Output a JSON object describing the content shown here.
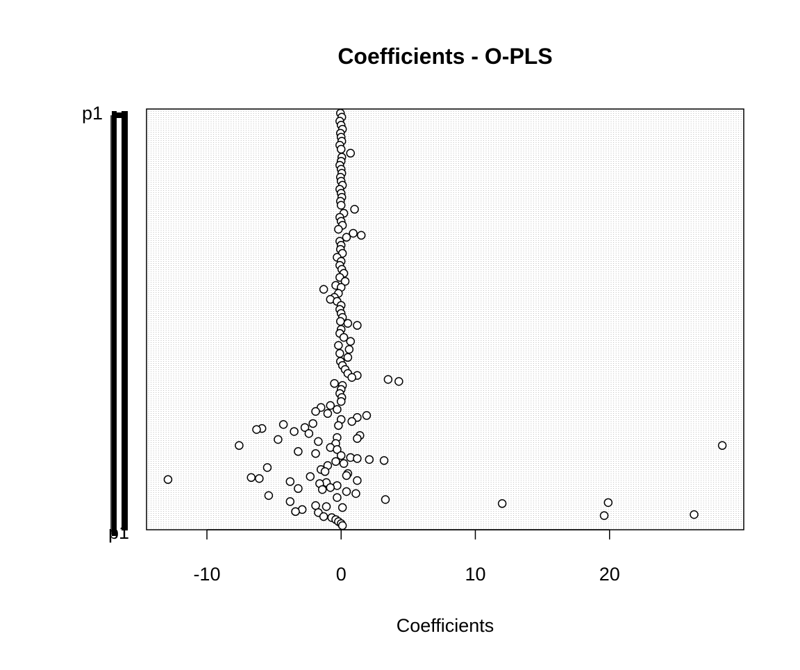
{
  "chart_data": {
    "type": "scatter",
    "title": "Coefficients -  O-PLS",
    "xlabel": "Coefficients",
    "ylabel": "",
    "xlim": [
      -14.5,
      30
    ],
    "xticks": [
      -10,
      0,
      10,
      20
    ],
    "xtick_labels": [
      "-10",
      "0",
      "10",
      "20"
    ],
    "y_top_label": "p1",
    "y_bottom_label": "p1",
    "grid": "dense vertical dotted lines",
    "legend": "none",
    "colors": {
      "point_fill": "#ffffff",
      "point_stroke": "#000000",
      "grid": "#bdbdbd",
      "text": "#000000"
    },
    "points": [
      {
        "x": -0.05,
        "y": 0
      },
      {
        "x": 0.05,
        "y": 2
      },
      {
        "x": -0.1,
        "y": 4
      },
      {
        "x": 0.0,
        "y": 6
      },
      {
        "x": 0.1,
        "y": 8
      },
      {
        "x": -0.05,
        "y": 10
      },
      {
        "x": 0.0,
        "y": 12
      },
      {
        "x": 0.05,
        "y": 14
      },
      {
        "x": -0.1,
        "y": 16
      },
      {
        "x": 0.0,
        "y": 18
      },
      {
        "x": 0.7,
        "y": 20
      },
      {
        "x": 0.05,
        "y": 22
      },
      {
        "x": 0.0,
        "y": 24
      },
      {
        "x": -0.1,
        "y": 26
      },
      {
        "x": 0.0,
        "y": 28
      },
      {
        "x": 0.05,
        "y": 30
      },
      {
        "x": -0.05,
        "y": 32
      },
      {
        "x": 0.0,
        "y": 34
      },
      {
        "x": 0.1,
        "y": 36
      },
      {
        "x": -0.1,
        "y": 38
      },
      {
        "x": 0.0,
        "y": 40
      },
      {
        "x": 0.05,
        "y": 42
      },
      {
        "x": -0.05,
        "y": 44
      },
      {
        "x": 0.0,
        "y": 46
      },
      {
        "x": 1.0,
        "y": 48
      },
      {
        "x": 0.2,
        "y": 50
      },
      {
        "x": -0.1,
        "y": 52
      },
      {
        "x": 0.0,
        "y": 54
      },
      {
        "x": 0.1,
        "y": 56
      },
      {
        "x": -0.2,
        "y": 58
      },
      {
        "x": 0.9,
        "y": 60
      },
      {
        "x": 1.5,
        "y": 61
      },
      {
        "x": 0.4,
        "y": 62
      },
      {
        "x": -0.1,
        "y": 64
      },
      {
        "x": 0.0,
        "y": 66
      },
      {
        "x": -0.05,
        "y": 68
      },
      {
        "x": 0.1,
        "y": 70
      },
      {
        "x": -0.3,
        "y": 72
      },
      {
        "x": 0.0,
        "y": 74
      },
      {
        "x": -0.1,
        "y": 76
      },
      {
        "x": 0.05,
        "y": 78
      },
      {
        "x": 0.2,
        "y": 80
      },
      {
        "x": -0.1,
        "y": 82
      },
      {
        "x": 0.3,
        "y": 84
      },
      {
        "x": -0.4,
        "y": 86
      },
      {
        "x": 0.0,
        "y": 87
      },
      {
        "x": -1.3,
        "y": 88
      },
      {
        "x": -0.2,
        "y": 90
      },
      {
        "x": -0.5,
        "y": 92
      },
      {
        "x": -0.8,
        "y": 93
      },
      {
        "x": -0.3,
        "y": 94
      },
      {
        "x": 0.0,
        "y": 96
      },
      {
        "x": -0.1,
        "y": 98
      },
      {
        "x": 0.0,
        "y": 100
      },
      {
        "x": 0.1,
        "y": 102
      },
      {
        "x": -0.05,
        "y": 104
      },
      {
        "x": 0.5,
        "y": 105
      },
      {
        "x": 1.2,
        "y": 106
      },
      {
        "x": 0.0,
        "y": 108
      },
      {
        "x": -0.1,
        "y": 110
      },
      {
        "x": 0.2,
        "y": 112
      },
      {
        "x": 0.7,
        "y": 114
      },
      {
        "x": -0.2,
        "y": 116
      },
      {
        "x": 0.6,
        "y": 118
      },
      {
        "x": -0.1,
        "y": 120
      },
      {
        "x": 0.5,
        "y": 122
      },
      {
        "x": -0.05,
        "y": 124
      },
      {
        "x": 0.1,
        "y": 126
      },
      {
        "x": 0.3,
        "y": 128
      },
      {
        "x": 0.5,
        "y": 130
      },
      {
        "x": 1.2,
        "y": 131
      },
      {
        "x": 0.8,
        "y": 132
      },
      {
        "x": 3.5,
        "y": 133
      },
      {
        "x": 4.3,
        "y": 134
      },
      {
        "x": -0.5,
        "y": 135
      },
      {
        "x": 0.1,
        "y": 136
      },
      {
        "x": 0.0,
        "y": 138
      },
      {
        "x": -0.1,
        "y": 140
      },
      {
        "x": 0.05,
        "y": 142
      },
      {
        "x": 0.0,
        "y": 144
      },
      {
        "x": -0.8,
        "y": 146
      },
      {
        "x": -1.5,
        "y": 147
      },
      {
        "x": -0.3,
        "y": 148
      },
      {
        "x": -1.9,
        "y": 149
      },
      {
        "x": -1.0,
        "y": 150
      },
      {
        "x": 1.9,
        "y": 151
      },
      {
        "x": 1.2,
        "y": 152
      },
      {
        "x": 0.0,
        "y": 153
      },
      {
        "x": 0.8,
        "y": 154
      },
      {
        "x": -2.1,
        "y": 155
      },
      {
        "x": -4.3,
        "y": 155.5
      },
      {
        "x": -0.2,
        "y": 156
      },
      {
        "x": -2.7,
        "y": 157
      },
      {
        "x": -5.9,
        "y": 157.5
      },
      {
        "x": -6.3,
        "y": 158
      },
      {
        "x": -3.5,
        "y": 159
      },
      {
        "x": -2.4,
        "y": 160
      },
      {
        "x": 1.4,
        "y": 161
      },
      {
        "x": -0.3,
        "y": 162
      },
      {
        "x": 1.2,
        "y": 162.5
      },
      {
        "x": -4.7,
        "y": 163
      },
      {
        "x": -1.7,
        "y": 164
      },
      {
        "x": -0.4,
        "y": 165
      },
      {
        "x": -7.6,
        "y": 166
      },
      {
        "x": 28.4,
        "y": 166
      },
      {
        "x": -0.8,
        "y": 167
      },
      {
        "x": -0.3,
        "y": 168
      },
      {
        "x": -3.2,
        "y": 169
      },
      {
        "x": -1.9,
        "y": 170
      },
      {
        "x": 0.0,
        "y": 171
      },
      {
        "x": 0.7,
        "y": 172
      },
      {
        "x": 1.2,
        "y": 172.5
      },
      {
        "x": 2.1,
        "y": 173
      },
      {
        "x": 3.2,
        "y": 173.5
      },
      {
        "x": -0.4,
        "y": 174
      },
      {
        "x": 0.2,
        "y": 175
      },
      {
        "x": -1.0,
        "y": 176
      },
      {
        "x": -5.5,
        "y": 177
      },
      {
        "x": -1.5,
        "y": 178
      },
      {
        "x": -1.2,
        "y": 179
      },
      {
        "x": 0.5,
        "y": 180
      },
      {
        "x": 0.4,
        "y": 181
      },
      {
        "x": -2.3,
        "y": 181.5
      },
      {
        "x": -6.7,
        "y": 182
      },
      {
        "x": -6.1,
        "y": 182.5
      },
      {
        "x": -12.9,
        "y": 183
      },
      {
        "x": 1.2,
        "y": 183.5
      },
      {
        "x": -3.8,
        "y": 184
      },
      {
        "x": -1.1,
        "y": 184.5
      },
      {
        "x": -1.6,
        "y": 185
      },
      {
        "x": -0.3,
        "y": 186
      },
      {
        "x": -0.8,
        "y": 187
      },
      {
        "x": -3.2,
        "y": 187.5
      },
      {
        "x": -1.4,
        "y": 188
      },
      {
        "x": 0.4,
        "y": 189
      },
      {
        "x": 1.1,
        "y": 190
      },
      {
        "x": -5.4,
        "y": 191
      },
      {
        "x": -0.3,
        "y": 192
      },
      {
        "x": 3.3,
        "y": 193
      },
      {
        "x": -3.8,
        "y": 194
      },
      {
        "x": 12.0,
        "y": 195
      },
      {
        "x": 19.9,
        "y": 194.5
      },
      {
        "x": -1.9,
        "y": 196
      },
      {
        "x": -1.1,
        "y": 196.5
      },
      {
        "x": 0.1,
        "y": 197
      },
      {
        "x": -2.9,
        "y": 198
      },
      {
        "x": -3.4,
        "y": 199
      },
      {
        "x": -1.7,
        "y": 199.5
      },
      {
        "x": 19.6,
        "y": 201
      },
      {
        "x": 26.3,
        "y": 200.5
      },
      {
        "x": -1.3,
        "y": 201.5
      },
      {
        "x": -0.7,
        "y": 202
      },
      {
        "x": -0.4,
        "y": 203
      },
      {
        "x": -0.2,
        "y": 204
      },
      {
        "x": 0.0,
        "y": 205
      },
      {
        "x": 0.1,
        "y": 206
      }
    ],
    "y_range": [
      0,
      206
    ]
  }
}
